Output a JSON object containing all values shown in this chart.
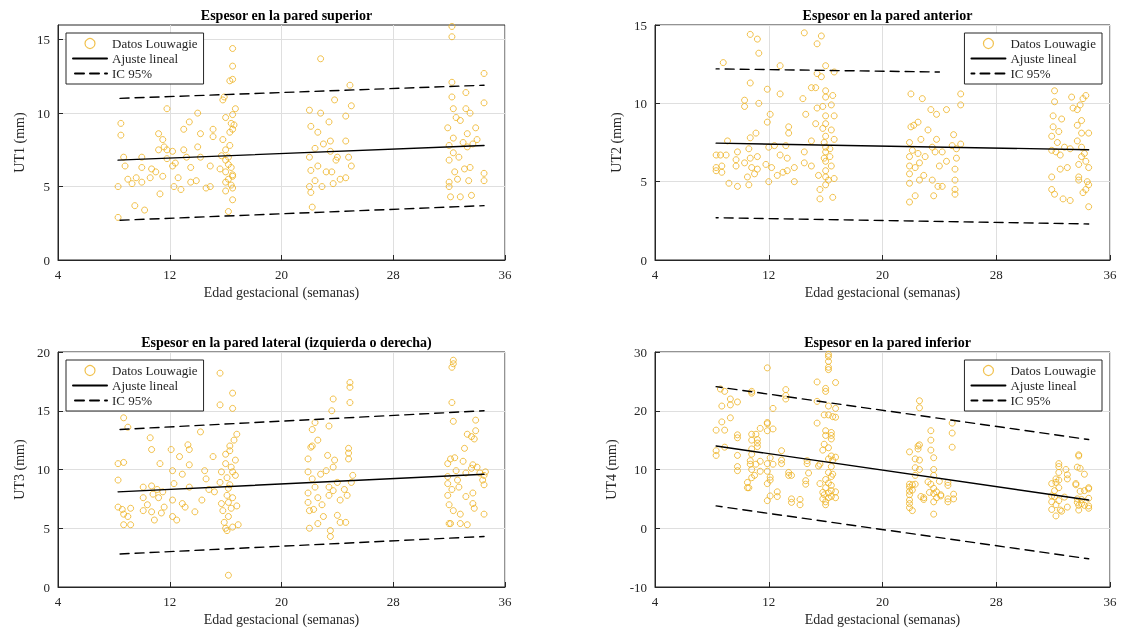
{
  "chart_data": [
    {
      "type": "scatter",
      "title": "Espesor en la pared superior",
      "xlabel": "Edad gestacional (semanas)",
      "ylabel": "UT1 (mm)",
      "xlim": [
        4,
        36
      ],
      "xticks": [
        4,
        12,
        20,
        28,
        36
      ],
      "ylim": [
        0,
        16
      ],
      "yticks": [
        0,
        5,
        10,
        15
      ],
      "grid": true,
      "legend": "top left",
      "series": [
        {
          "name": "Datos Louwagie",
          "color": "#edb120",
          "marker": "circle",
          "x": [
            8.3,
            8.3,
            8.5,
            8.5,
            8.7,
            8.8,
            9.0,
            9.3,
            9.5,
            9.6,
            10.0,
            10.0,
            10.0,
            10.2,
            10.6,
            10.7,
            11.2,
            11.2,
            11.0,
            11.3,
            11.5,
            11.5,
            11.6,
            11.8,
            11.8,
            11.8,
            12.2,
            12.2,
            12.3,
            12.6,
            12.4,
            12.8,
            13.0,
            13.0,
            13.2,
            13.4,
            13.5,
            13.5,
            13.9,
            14.0,
            14.0,
            14.2,
            14.2,
            14.6,
            14.9,
            14.9,
            15.1,
            15.1,
            15.6,
            15.7,
            15.8,
            15.8,
            15.9,
            16.0,
            16.0,
            16.0,
            16.0,
            16.0,
            16.0,
            16.2,
            16.2,
            16.2,
            16.2,
            16.3,
            16.3,
            16.4,
            16.4,
            16.5,
            16.5,
            16.5,
            16.5,
            16.5,
            16.5,
            16.3,
            16.5,
            16.7,
            16.6,
            16.5,
            16.5,
            16.4,
            22.0,
            22.0,
            22.1,
            22.2,
            22.0,
            22.1,
            22.1,
            22.4,
            22.4,
            22.6,
            22.6,
            22.8,
            22.9,
            22.8,
            23.0,
            23.2,
            23.4,
            23.5,
            23.5,
            23.6,
            23.7,
            23.8,
            23.9,
            24.0,
            24.2,
            24.6,
            24.6,
            24.6,
            24.8,
            24.9,
            25.0,
            25.0,
            31.9,
            32.0,
            32.0,
            32.0,
            32.0,
            32.1,
            32.2,
            32.2,
            32.2,
            32.2,
            32.3,
            32.3,
            32.3,
            32.4,
            32.5,
            32.6,
            32.7,
            32.8,
            32.8,
            33.0,
            33.1,
            33.2,
            33.2,
            33.3,
            33.3,
            33.4,
            33.5,
            33.5,
            33.6,
            33.7,
            33.9,
            34.0,
            34.5,
            34.5,
            34.5,
            34.5
          ],
          "values": [
            2.9,
            5.0,
            9.3,
            8.5,
            7.0,
            6.4,
            5.5,
            5.2,
            3.7,
            5.6,
            5.3,
            6.3,
            7.0,
            3.4,
            5.6,
            6.2,
            7.5,
            8.6,
            6.0,
            4.5,
            8.2,
            5.7,
            7.7,
            6.9,
            7.5,
            10.3,
            7.4,
            6.4,
            5.0,
            5.6,
            6.6,
            4.8,
            8.9,
            7.5,
            7.0,
            9.4,
            5.3,
            6.3,
            5.4,
            7.7,
            10.0,
            7.0,
            8.6,
            4.9,
            6.4,
            5.0,
            8.9,
            8.4,
            6.2,
            7.1,
            10.9,
            8.2,
            11.1,
            9.7,
            7.5,
            6.8,
            6.0,
            5.3,
            4.7,
            3.3,
            6.5,
            5.5,
            7.0,
            7.8,
            8.7,
            9.3,
            6.3,
            5.7,
            4.9,
            4.1,
            14.4,
            13.2,
            12.3,
            12.2,
            9.9,
            10.3,
            9.2,
            8.9,
            5.8,
            5.1,
            10.2,
            7.0,
            9.1,
            3.6,
            5.0,
            4.6,
            6.1,
            5.4,
            7.6,
            8.7,
            6.4,
            10.0,
            5.0,
            13.7,
            7.9,
            6.0,
            9.4,
            8.1,
            7.4,
            6.0,
            5.2,
            10.9,
            6.8,
            7.0,
            5.5,
            9.8,
            8.1,
            5.6,
            7.0,
            11.9,
            10.5,
            6.4,
            9.0,
            7.8,
            6.8,
            5.3,
            5.0,
            4.3,
            15.9,
            15.2,
            12.1,
            11.1,
            10.3,
            8.3,
            7.3,
            6.0,
            9.7,
            5.5,
            7.0,
            9.5,
            4.3,
            8.0,
            6.2,
            10.3,
            11.4,
            8.6,
            7.7,
            5.4,
            10.0,
            6.3,
            4.4,
            7.9,
            9.0,
            8.2,
            12.7,
            10.7,
            5.9,
            5.4
          ]
        },
        {
          "type": "line",
          "name": "Ajuste lineal",
          "color": "#000000",
          "marker": "none",
          "line_style": "solid",
          "x": [
            8.3,
            34.5
          ],
          "values": [
            6.8,
            7.8
          ]
        },
        {
          "type": "line",
          "name": "IC 95%",
          "color": "#000000",
          "marker": "none",
          "line_style": "dashed",
          "x": [
            8.3,
            34.5
          ],
          "values": [
            11.0,
            11.9
          ]
        },
        {
          "type": "line",
          "color": "#000000",
          "marker": "none",
          "line_style": "dashed",
          "x": [
            8.3,
            34.5
          ],
          "values": [
            2.7,
            3.7
          ]
        }
      ]
    },
    {
      "type": "scatter",
      "title": "Espesor en la pared anterior",
      "xlabel": "Edad gestacional (semanas)",
      "ylabel": "UT2 (mm)",
      "xlim": [
        4,
        36
      ],
      "xticks": [
        4,
        12,
        20,
        28,
        36
      ],
      "ylim": [
        0,
        15
      ],
      "yticks": [
        0,
        5,
        10,
        15
      ],
      "grid": true,
      "legend": "top right",
      "series": [
        {
          "name": "Datos Louwagie",
          "color": "#edb120",
          "marker": "circle",
          "x": [
            8.3,
            8.3,
            8.3,
            8.6,
            8.7,
            8.7,
            8.8,
            9.0,
            9.1,
            9.2,
            9.7,
            9.7,
            9.8,
            9.8,
            10.3,
            10.3,
            10.3,
            10.5,
            10.6,
            10.6,
            10.7,
            10.7,
            10.7,
            10.7,
            10.8,
            11.0,
            11.1,
            11.2,
            11.2,
            11.3,
            11.3,
            11.2,
            11.8,
            11.9,
            11.9,
            12.0,
            12.0,
            12.1,
            12.2,
            12.4,
            12.6,
            12.8,
            12.8,
            12.8,
            13.0,
            13.2,
            13.3,
            13.4,
            13.4,
            13.3,
            13.8,
            13.8,
            14.5,
            14.4,
            14.5,
            14.6,
            14.5,
            15.0,
            15.0,
            15.0,
            15.3,
            15.3,
            15.4,
            15.4,
            15.4,
            15.5,
            15.6,
            15.6,
            15.7,
            15.7,
            15.8,
            15.8,
            15.9,
            15.9,
            16.0,
            16.0,
            16.0,
            16.0,
            16.0,
            16.0,
            16.0,
            16.0,
            16.0,
            16.0,
            16.0,
            16.0,
            16.2,
            16.3,
            16.3,
            16.4,
            16.4,
            16.4,
            16.5,
            16.5,
            16.6,
            16.6,
            16.6,
            16.6,
            21.9,
            21.9,
            21.9,
            21.9,
            21.9,
            21.9,
            22.0,
            22.0,
            22.1,
            22.2,
            22.3,
            22.3,
            22.5,
            22.5,
            22.6,
            22.6,
            22.7,
            22.8,
            22.9,
            23.0,
            23.2,
            23.4,
            23.5,
            23.5,
            23.6,
            23.7,
            23.8,
            23.8,
            23.9,
            24.0,
            24.2,
            24.2,
            24.5,
            24.5,
            24.9,
            25.0,
            25.1,
            25.1,
            25.1,
            25.2,
            25.2,
            25.5,
            25.5,
            25.5,
            25.1,
            31.9,
            31.9,
            31.9,
            31.9,
            32.0,
            32.0,
            32.1,
            32.1,
            32.1,
            32.2,
            32.3,
            32.4,
            32.5,
            32.5,
            32.6,
            32.7,
            32.8,
            33.0,
            33.2,
            33.2,
            33.3,
            33.4,
            33.7,
            33.7,
            33.7,
            33.8,
            33.8,
            33.8,
            33.9,
            34.0,
            34.0,
            34.0,
            34.0,
            34.1,
            34.1,
            34.2,
            34.3,
            34.3,
            34.3,
            34.5,
            34.5,
            34.4,
            34.5,
            34.5
          ],
          "values": [
            5.7,
            5.9,
            6.7,
            6.7,
            6.0,
            5.6,
            12.6,
            6.7,
            7.6,
            4.9,
            6.4,
            6.0,
            6.9,
            4.7,
            6.2,
            9.8,
            10.2,
            5.3,
            4.8,
            7.1,
            14.4,
            11.3,
            7.8,
            6.5,
            5.9,
            5.5,
            8.1,
            14.1,
            5.8,
            13.2,
            10.0,
            6.6,
            6.1,
            10.9,
            8.8,
            7.2,
            5.0,
            9.3,
            5.9,
            7.3,
            5.4,
            12.4,
            10.6,
            6.7,
            5.6,
            7.3,
            5.7,
            8.5,
            8.1,
            6.5,
            5.9,
            5.0,
            14.5,
            10.3,
            6.9,
            9.3,
            6.2,
            6.0,
            7.6,
            11.0,
            11.0,
            8.7,
            13.8,
            11.9,
            9.7,
            5.4,
            3.9,
            4.5,
            14.3,
            11.7,
            9.8,
            8.4,
            7.5,
            6.5,
            12.4,
            10.8,
            10.4,
            9.2,
            8.7,
            7.9,
            7.2,
            6.9,
            6.3,
            5.7,
            5.3,
            4.8,
            5.1,
            7.1,
            6.6,
            9.9,
            8.3,
            6.0,
            4.0,
            10.5,
            12.0,
            9.2,
            7.7,
            5.2,
            3.7,
            4.9,
            5.5,
            6.0,
            6.6,
            7.5,
            8.5,
            10.6,
            7.0,
            8.6,
            5.9,
            4.1,
            6.8,
            8.8,
            5.1,
            6.2,
            7.7,
            10.3,
            5.4,
            6.6,
            8.3,
            9.6,
            7.2,
            5.1,
            4.1,
            6.9,
            9.3,
            7.7,
            4.7,
            6.0,
            4.7,
            6.9,
            6.3,
            9.6,
            7.3,
            8.0,
            4.5,
            5.1,
            5.8,
            7.1,
            6.5,
            7.4,
            9.9,
            10.6,
            4.2,
            4.5,
            5.3,
            7.0,
            7.9,
            8.5,
            9.2,
            10.1,
            10.8,
            4.2,
            6.9,
            7.5,
            8.2,
            6.7,
            5.8,
            9.0,
            3.9,
            7.2,
            5.9,
            7.1,
            3.8,
            10.4,
            9.7,
            9.6,
            8.6,
            7.6,
            5.3,
            5.1,
            6.1,
            9.9,
            8.9,
            8.1,
            7.2,
            6.6,
            4.3,
            10.3,
            6.8,
            10.5,
            4.5,
            6.3,
            8.1,
            5.9,
            5.0,
            4.8,
            3.4
          ]
        },
        {
          "type": "line",
          "name": "Ajuste lineal",
          "color": "#000000",
          "marker": "none",
          "line_style": "solid",
          "x": [
            8.3,
            34.5
          ],
          "values": [
            7.46,
            7.04
          ]
        },
        {
          "type": "line",
          "name": "IC 95%",
          "color": "#000000",
          "marker": "none",
          "line_style": "dashed",
          "x": [
            8.3,
            24.0
          ],
          "values": [
            12.2,
            12.0
          ]
        },
        {
          "type": "line",
          "color": "#000000",
          "marker": "none",
          "line_style": "dashed",
          "x": [
            8.3,
            34.5
          ],
          "values": [
            2.7,
            2.3
          ]
        }
      ]
    },
    {
      "type": "scatter",
      "title": "Espesor en la pared lateral (izquierda o derecha)",
      "xlabel": "Edad gestacional (semanas)",
      "ylabel": "UT3 (mm)",
      "xlim": [
        4,
        36
      ],
      "xticks": [
        4,
        12,
        20,
        28,
        36
      ],
      "ylim": [
        0,
        20
      ],
      "yticks": [
        0,
        5,
        10,
        15,
        20
      ],
      "grid": true,
      "legend": "top left",
      "series": [
        {
          "name": "Datos Louwagie",
          "color": "#edb120",
          "marker": "circle",
          "x": [
            8.3,
            8.3,
            8.3,
            8.6,
            8.7,
            8.7,
            8.7,
            8.7,
            9.0,
            9.0,
            9.2,
            9.2,
            10.1,
            10.1,
            10.1,
            10.4,
            10.6,
            10.7,
            10.7,
            10.8,
            10.7,
            10.9,
            11.1,
            11.2,
            11.3,
            11.4,
            11.5,
            11.6,
            12.1,
            12.2,
            12.2,
            12.2,
            12.3,
            12.5,
            12.7,
            12.9,
            12.9,
            13.1,
            13.3,
            13.4,
            13.4,
            13.4,
            13.8,
            14.2,
            14.3,
            14.5,
            14.6,
            14.8,
            15.1,
            15.2,
            15.6,
            15.6,
            15.6,
            15.7,
            15.7,
            15.8,
            15.9,
            16.0,
            16.0,
            16.0,
            16.1,
            16.1,
            16.1,
            16.2,
            16.2,
            16.2,
            16.3,
            16.3,
            16.3,
            16.4,
            16.4,
            16.5,
            16.5,
            16.5,
            16.5,
            16.5,
            16.2,
            16.6,
            16.7,
            16.7,
            16.8,
            16.8,
            16.9,
            21.9,
            21.9,
            21.9,
            21.9,
            22.0,
            22.0,
            22.1,
            22.2,
            22.2,
            22.2,
            22.3,
            22.4,
            22.4,
            22.6,
            22.6,
            22.6,
            22.8,
            22.9,
            23.0,
            23.2,
            23.3,
            23.4,
            23.4,
            23.4,
            23.5,
            23.5,
            23.6,
            23.7,
            23.7,
            23.7,
            23.8,
            24.0,
            24.0,
            24.2,
            24.2,
            24.5,
            24.6,
            24.7,
            24.8,
            24.8,
            24.8,
            24.9,
            24.9,
            24.9,
            25.0,
            25.1,
            31.9,
            31.9,
            31.9,
            31.9,
            32.0,
            32.0,
            32.1,
            32.1,
            32.2,
            32.3,
            32.2,
            32.2,
            32.3,
            32.3,
            32.3,
            32.4,
            32.5,
            32.6,
            32.7,
            32.8,
            32.8,
            33.0,
            33.1,
            33.2,
            33.2,
            33.3,
            33.3,
            33.6,
            33.6,
            33.7,
            33.7,
            33.7,
            33.8,
            33.8,
            33.9,
            33.9,
            34.0,
            34.2,
            34.4,
            34.5,
            34.5,
            34.5,
            34.6
          ],
          "values": [
            10.5,
            9.1,
            6.8,
            6.6,
            10.6,
            6.2,
            5.3,
            14.4,
            13.6,
            6.0,
            5.3,
            6.7,
            6.5,
            7.6,
            8.5,
            7.0,
            12.7,
            11.7,
            8.6,
            7.9,
            6.4,
            5.7,
            8.3,
            7.6,
            10.5,
            6.3,
            8.1,
            6.8,
            11.7,
            9.9,
            7.4,
            6.0,
            8.8,
            5.7,
            11.1,
            9.6,
            7.1,
            6.8,
            12.1,
            11.7,
            8.5,
            10.4,
            6.4,
            13.2,
            7.4,
            9.9,
            9.2,
            8.3,
            11.1,
            8.1,
            18.2,
            15.5,
            8.9,
            7.1,
            9.8,
            6.5,
            5.5,
            5.0,
            11.3,
            10.5,
            4.8,
            9.3,
            7.8,
            8.4,
            7.2,
            6.0,
            12.0,
            11.6,
            8.7,
            10.2,
            6.7,
            16.5,
            15.2,
            9.8,
            7.6,
            5.1,
            1.0,
            12.5,
            10.8,
            9.5,
            13.0,
            6.9,
            5.3,
            10.9,
            9.8,
            8.0,
            7.2,
            6.5,
            5.0,
            11.9,
            12.0,
            9.2,
            13.4,
            6.6,
            14.0,
            8.5,
            12.5,
            7.6,
            5.4,
            9.6,
            7.0,
            6.0,
            9.9,
            11.2,
            13.7,
            8.5,
            7.8,
            4.3,
            4.8,
            15.0,
            16.0,
            10.2,
            8.2,
            10.8,
            8.9,
            6.1,
            7.4,
            5.5,
            8.3,
            5.5,
            7.8,
            10.9,
            11.8,
            11.4,
            15.7,
            17.0,
            17.4,
            8.9,
            9.5,
            10.5,
            9.4,
            8.8,
            7.8,
            7.0,
            5.4,
            5.4,
            10.9,
            8.3,
            6.5,
            15.7,
            18.7,
            19.0,
            19.3,
            14.1,
            11.0,
            9.9,
            9.1,
            8.5,
            6.2,
            5.4,
            10.7,
            11.8,
            9.7,
            7.7,
            5.3,
            13.0,
            12.8,
            10.1,
            10.4,
            8.0,
            7.1,
            6.7,
            12.6,
            14.2,
            13.3,
            10.2,
            9.7,
            9.1,
            8.7,
            9.5,
            6.2,
            9.8
          ]
        },
        {
          "type": "line",
          "name": "Ajuste lineal",
          "color": "#000000",
          "marker": "none",
          "line_style": "solid",
          "x": [
            8.3,
            34.5
          ],
          "values": [
            8.1,
            9.6
          ]
        },
        {
          "type": "line",
          "name": "IC 95%",
          "color": "#000000",
          "marker": "none",
          "line_style": "dashed",
          "x": [
            8.3,
            34.5
          ],
          "values": [
            13.4,
            15.0
          ]
        },
        {
          "type": "line",
          "color": "#000000",
          "marker": "none",
          "line_style": "dashed",
          "x": [
            8.3,
            34.5
          ],
          "values": [
            2.8,
            4.3
          ]
        }
      ]
    },
    {
      "type": "scatter",
      "title": "Espesor en la pared inferior",
      "xlabel": "Edad gestacional (semanas)",
      "ylabel": "UT4 (mm)",
      "xlim": [
        4,
        36
      ],
      "xticks": [
        4,
        12,
        20,
        28,
        36
      ],
      "ylim": [
        -10,
        30
      ],
      "yticks": [
        -10,
        0,
        10,
        20,
        30
      ],
      "grid": true,
      "legend": "top right",
      "series": [
        {
          "name": "Datos Louwagie",
          "color": "#edb120",
          "marker": "circle",
          "x": [
            8.3,
            8.3,
            8.3,
            8.6,
            8.7,
            8.7,
            8.9,
            8.9,
            8.9,
            9.3,
            9.3,
            9.3,
            9.8,
            9.8,
            9.8,
            9.8,
            9.8,
            9.8,
            10.5,
            10.5,
            10.6,
            10.7,
            10.7,
            10.8,
            10.8,
            10.8,
            10.8,
            10.8,
            10.8,
            10.8,
            10.8,
            11.0,
            11.1,
            11.1,
            11.2,
            11.2,
            11.2,
            11.4,
            11.4,
            11.4,
            11.9,
            11.9,
            11.9,
            11.9,
            11.9,
            11.9,
            11.9,
            11.9,
            12.1,
            12.1,
            12.1,
            12.1,
            12.3,
            12.3,
            12.3,
            12.6,
            12.6,
            12.9,
            12.9,
            12.9,
            13.2,
            13.2,
            13.2,
            13.4,
            13.4,
            13.6,
            13.6,
            13.6,
            14.2,
            14.2,
            14.6,
            14.6,
            14.7,
            14.7,
            14.8,
            15.4,
            15.4,
            15.4,
            15.5,
            15.6,
            15.6,
            15.8,
            15.8,
            15.8,
            15.9,
            15.9,
            15.9,
            16.0,
            16.0,
            16.0,
            16.0,
            16.0,
            16.0,
            16.0,
            16.0,
            16.2,
            16.2,
            16.2,
            16.2,
            16.2,
            16.2,
            16.2,
            16.2,
            16.2,
            16.2,
            16.2,
            16.2,
            16.2,
            16.4,
            16.4,
            16.4,
            16.4,
            16.4,
            16.4,
            16.4,
            16.4,
            16.4,
            16.5,
            16.5,
            16.5,
            16.7,
            16.7,
            16.7,
            16.7,
            16.7,
            16.7,
            21.9,
            21.9,
            21.9,
            21.9,
            21.9,
            21.9,
            21.9,
            21.9,
            22.1,
            22.1,
            22.1,
            22.3,
            22.3,
            22.3,
            22.3,
            22.5,
            22.5,
            22.6,
            22.6,
            22.6,
            22.6,
            22.6,
            22.7,
            22.9,
            22.9,
            23.2,
            23.3,
            23.4,
            23.4,
            23.4,
            23.4,
            23.6,
            23.6,
            23.6,
            23.6,
            23.6,
            23.6,
            23.6,
            23.8,
            23.8,
            24.0,
            24.1,
            24.1,
            24.6,
            24.6,
            24.6,
            24.6,
            24.9,
            24.9,
            24.9,
            25.0,
            25.0,
            31.9,
            31.9,
            31.9,
            31.9,
            32.1,
            32.1,
            32.2,
            32.2,
            32.2,
            32.2,
            32.4,
            32.4,
            32.4,
            32.4,
            32.4,
            32.4,
            32.5,
            32.6,
            32.8,
            32.9,
            33.0,
            33.0,
            33.0,
            33.6,
            33.6,
            33.7,
            33.7,
            33.7,
            33.8,
            33.8,
            33.8,
            33.8,
            33.9,
            33.9,
            34.0,
            34.0,
            34.2,
            34.2,
            34.2,
            34.5,
            34.5,
            34.5,
            34.5,
            34.5
          ],
          "values": [
            16.7,
            13.2,
            12.4,
            23.7,
            20.8,
            18.1,
            23.3,
            16.7,
            13.8,
            22.0,
            21.0,
            18.8,
            21.5,
            15.9,
            15.4,
            12.4,
            10.5,
            9.8,
            7.8,
            6.9,
            6.9,
            11.5,
            10.9,
            23.3,
            23.0,
            16.0,
            15.0,
            13.5,
            12.6,
            10.0,
            8.6,
            9.0,
            16.0,
            10.9,
            15.1,
            14.5,
            13.9,
            17.0,
            11.4,
            9.7,
            27.3,
            18.0,
            17.8,
            16.6,
            11.0,
            9.7,
            7.6,
            4.7,
            12.0,
            8.7,
            8.2,
            5.5,
            20.4,
            16.9,
            10.9,
            6.2,
            5.4,
            13.2,
            11.6,
            11.0,
            23.6,
            22.6,
            22.0,
            9.5,
            9.0,
            9.0,
            5.0,
            4.4,
            4.9,
            4.0,
            8.1,
            7.5,
            11.5,
            11.0,
            9.4,
            21.6,
            17.9,
            24.9,
            10.6,
            10.9,
            7.6,
            13.3,
            6.1,
            5.0,
            19.3,
            14.3,
            5.7,
            23.8,
            23.3,
            16.6,
            15.8,
            8.3,
            6.9,
            4.5,
            4.0,
            29.6,
            29.2,
            28.4,
            27.4,
            27.0,
            20.8,
            19.3,
            13.7,
            11.8,
            9.5,
            7.7,
            6.0,
            5.2,
            16.3,
            15.8,
            15.2,
            12.3,
            10.5,
            8.8,
            7.3,
            6.4,
            5.4,
            19.0,
            11.6,
            9.2,
            24.8,
            20.4,
            18.9,
            12.1,
            6.2,
            5.2,
            13.0,
            7.5,
            7.0,
            6.3,
            5.7,
            4.8,
            4.2,
            3.5,
            7.4,
            6.5,
            3.0,
            11.8,
            10.3,
            9.0,
            7.5,
            14.0,
            13.5,
            21.7,
            20.5,
            14.2,
            11.6,
            10.0,
            5.4,
            4.9,
            5.2,
            7.9,
            6.1,
            16.6,
            15.0,
            13.3,
            7.5,
            12.0,
            10.0,
            9.0,
            6.8,
            5.9,
            4.5,
            2.4,
            6.2,
            5.2,
            8.0,
            5.5,
            5.7,
            7.8,
            7.3,
            5.0,
            4.5,
            17.9,
            16.2,
            13.8,
            5.8,
            5.0,
            7.6,
            5.5,
            4.5,
            3.2,
            6.4,
            5.4,
            8.4,
            7.8,
            4.0,
            2.1,
            11.0,
            10.5,
            9.5,
            8.2,
            6.9,
            4.7,
            3.1,
            2.9,
            5.3,
            10.0,
            9.1,
            8.4,
            3.6,
            7.6,
            7.4,
            10.4,
            5.0,
            4.4,
            12.5,
            12.3,
            3.9,
            3.1,
            10.2,
            6.3,
            4.9,
            4.2,
            3.9,
            6.4,
            9.2,
            6.9,
            6.7,
            5.1,
            3.8,
            3.4
          ]
        },
        {
          "type": "line",
          "name": "Ajuste lineal",
          "color": "#000000",
          "marker": "none",
          "line_style": "solid",
          "x": [
            8.3,
            34.5
          ],
          "values": [
            14.0,
            4.8
          ]
        },
        {
          "type": "line",
          "name": "IC 95%",
          "color": "#000000",
          "marker": "none",
          "line_style": "dashed",
          "x": [
            8.3,
            34.5
          ],
          "values": [
            24.1,
            15.1
          ]
        },
        {
          "type": "line",
          "color": "#000000",
          "marker": "none",
          "line_style": "dashed",
          "x": [
            8.3,
            34.5
          ],
          "values": [
            3.8,
            -5.2
          ]
        }
      ]
    }
  ]
}
